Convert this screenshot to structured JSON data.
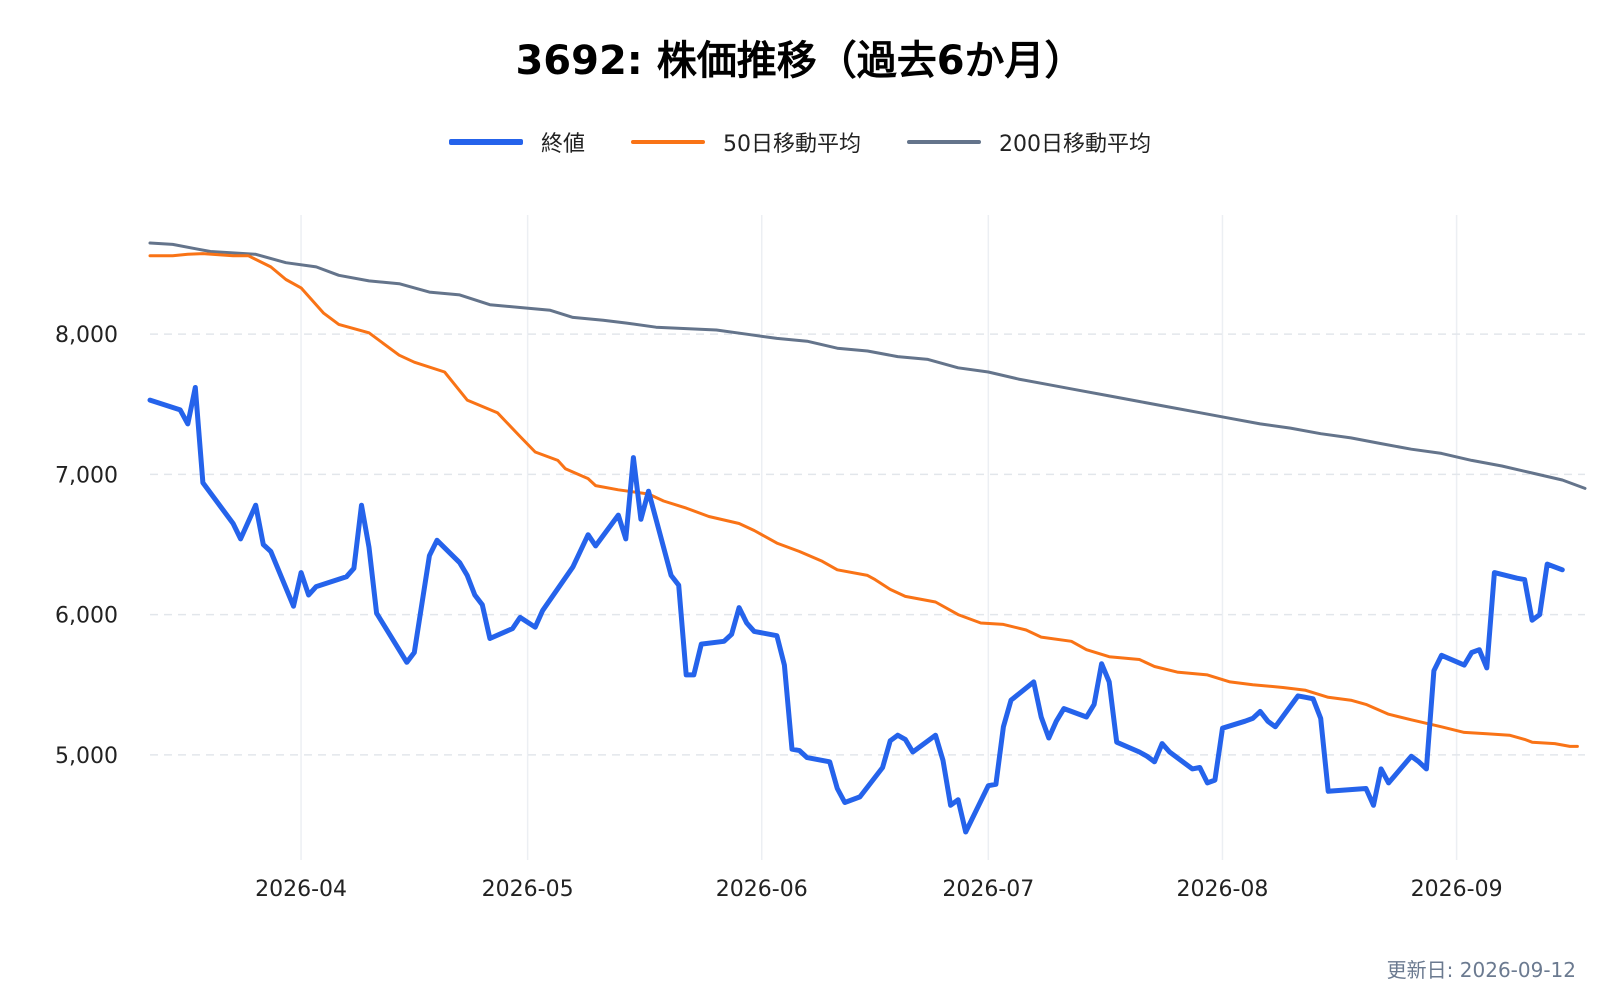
{
  "chart_data": {
    "type": "line",
    "title": "3692: 株価推移（過去6か月）",
    "xlabel": "",
    "ylabel": "",
    "x_ticks": [
      "2026-04",
      "2026-05",
      "2026-06",
      "2026-07",
      "2026-08",
      "2026-09"
    ],
    "y_ticks": [
      "5,000",
      "6,000",
      "7,000",
      "8,000"
    ],
    "y_tick_values": [
      5000,
      6000,
      7000,
      8000
    ],
    "xlim": [
      "2026-03-12",
      "2026-09-18"
    ],
    "ylim": [
      4250,
      8850
    ],
    "grid": {
      "horizontal": "dashed",
      "vertical": "solid"
    },
    "legend_position": "top-center",
    "series": [
      {
        "name": "終値",
        "color": "#2563eb",
        "points": [
          [
            "2026-03-12",
            7530
          ],
          [
            "2026-03-16",
            7460
          ],
          [
            "2026-03-17",
            7360
          ],
          [
            "2026-03-18",
            7620
          ],
          [
            "2026-03-19",
            6940
          ],
          [
            "2026-03-23",
            6650
          ],
          [
            "2026-03-24",
            6540
          ],
          [
            "2026-03-26",
            6780
          ],
          [
            "2026-03-27",
            6500
          ],
          [
            "2026-03-28",
            6450
          ],
          [
            "2026-03-31",
            6060
          ],
          [
            "2026-04-01",
            6300
          ],
          [
            "2026-04-02",
            6140
          ],
          [
            "2026-04-03",
            6200
          ],
          [
            "2026-04-07",
            6270
          ],
          [
            "2026-04-08",
            6330
          ],
          [
            "2026-04-09",
            6780
          ],
          [
            "2026-04-10",
            6480
          ],
          [
            "2026-04-11",
            6010
          ],
          [
            "2026-04-15",
            5660
          ],
          [
            "2026-04-16",
            5730
          ],
          [
            "2026-04-18",
            6420
          ],
          [
            "2026-04-19",
            6530
          ],
          [
            "2026-04-22",
            6370
          ],
          [
            "2026-04-23",
            6280
          ],
          [
            "2026-04-24",
            6140
          ],
          [
            "2026-04-25",
            6070
          ],
          [
            "2026-04-26",
            5830
          ],
          [
            "2026-04-29",
            5900
          ],
          [
            "2026-04-30",
            5980
          ],
          [
            "2026-05-02",
            5910
          ],
          [
            "2026-05-03",
            6030
          ],
          [
            "2026-05-07",
            6340
          ],
          [
            "2026-05-09",
            6570
          ],
          [
            "2026-05-10",
            6490
          ],
          [
            "2026-05-13",
            6710
          ],
          [
            "2026-05-14",
            6540
          ],
          [
            "2026-05-15",
            7120
          ],
          [
            "2026-05-16",
            6680
          ],
          [
            "2026-05-17",
            6880
          ],
          [
            "2026-05-20",
            6280
          ],
          [
            "2026-05-21",
            6210
          ],
          [
            "2026-05-22",
            5570
          ],
          [
            "2026-05-23",
            5570
          ],
          [
            "2026-05-24",
            5790
          ],
          [
            "2026-05-27",
            5810
          ],
          [
            "2026-05-28",
            5860
          ],
          [
            "2026-05-29",
            6050
          ],
          [
            "2026-05-30",
            5940
          ],
          [
            "2026-05-31",
            5880
          ],
          [
            "2026-06-03",
            5850
          ],
          [
            "2026-06-04",
            5640
          ],
          [
            "2026-06-05",
            5040
          ],
          [
            "2026-06-06",
            5030
          ],
          [
            "2026-06-07",
            4980
          ],
          [
            "2026-06-10",
            4950
          ],
          [
            "2026-06-11",
            4760
          ],
          [
            "2026-06-12",
            4660
          ],
          [
            "2026-06-14",
            4700
          ],
          [
            "2026-06-17",
            4910
          ],
          [
            "2026-06-18",
            5100
          ],
          [
            "2026-06-19",
            5140
          ],
          [
            "2026-06-20",
            5110
          ],
          [
            "2026-06-21",
            5020
          ],
          [
            "2026-06-24",
            5140
          ],
          [
            "2026-06-25",
            4960
          ],
          [
            "2026-06-26",
            4640
          ],
          [
            "2026-06-27",
            4680
          ],
          [
            "2026-06-28",
            4450
          ],
          [
            "2026-07-01",
            4780
          ],
          [
            "2026-07-02",
            4790
          ],
          [
            "2026-07-03",
            5200
          ],
          [
            "2026-07-04",
            5390
          ],
          [
            "2026-07-07",
            5520
          ],
          [
            "2026-07-08",
            5270
          ],
          [
            "2026-07-09",
            5120
          ],
          [
            "2026-07-10",
            5240
          ],
          [
            "2026-07-11",
            5330
          ],
          [
            "2026-07-14",
            5270
          ],
          [
            "2026-07-15",
            5360
          ],
          [
            "2026-07-16",
            5650
          ],
          [
            "2026-07-17",
            5520
          ],
          [
            "2026-07-18",
            5090
          ],
          [
            "2026-07-21",
            5020
          ],
          [
            "2026-07-22",
            4990
          ],
          [
            "2026-07-23",
            4950
          ],
          [
            "2026-07-24",
            5080
          ],
          [
            "2026-07-25",
            5020
          ],
          [
            "2026-07-28",
            4900
          ],
          [
            "2026-07-29",
            4910
          ],
          [
            "2026-07-30",
            4800
          ],
          [
            "2026-07-31",
            4820
          ],
          [
            "2026-08-01",
            5190
          ],
          [
            "2026-08-04",
            5240
          ],
          [
            "2026-08-05",
            5260
          ],
          [
            "2026-08-06",
            5310
          ],
          [
            "2026-08-07",
            5240
          ],
          [
            "2026-08-08",
            5200
          ],
          [
            "2026-08-11",
            5420
          ],
          [
            "2026-08-12",
            5410
          ],
          [
            "2026-08-13",
            5400
          ],
          [
            "2026-08-14",
            5260
          ],
          [
            "2026-08-15",
            4740
          ],
          [
            "2026-08-20",
            4760
          ],
          [
            "2026-08-21",
            4640
          ],
          [
            "2026-08-22",
            4900
          ],
          [
            "2026-08-23",
            4800
          ],
          [
            "2026-08-26",
            4990
          ],
          [
            "2026-08-27",
            4950
          ],
          [
            "2026-08-28",
            4900
          ],
          [
            "2026-08-29",
            5600
          ],
          [
            "2026-08-30",
            5710
          ],
          [
            "2026-09-02",
            5640
          ],
          [
            "2026-09-03",
            5730
          ],
          [
            "2026-09-04",
            5750
          ],
          [
            "2026-09-05",
            5620
          ],
          [
            "2026-09-06",
            6300
          ],
          [
            "2026-09-09",
            6260
          ],
          [
            "2026-09-10",
            6250
          ],
          [
            "2026-09-11",
            5960
          ],
          [
            "2026-09-12",
            6000
          ],
          [
            "2026-09-13",
            6360
          ],
          [
            "2026-09-15",
            6320
          ]
        ]
      },
      {
        "name": "50日移動平均",
        "color": "#f97316",
        "points": [
          [
            "2026-03-12",
            8560
          ],
          [
            "2026-03-15",
            8560
          ],
          [
            "2026-03-17",
            8570
          ],
          [
            "2026-03-19",
            8575
          ],
          [
            "2026-03-23",
            8560
          ],
          [
            "2026-03-25",
            8560
          ],
          [
            "2026-03-28",
            8480
          ],
          [
            "2026-03-30",
            8390
          ],
          [
            "2026-04-01",
            8330
          ],
          [
            "2026-04-04",
            8150
          ],
          [
            "2026-04-06",
            8070
          ],
          [
            "2026-04-10",
            8010
          ],
          [
            "2026-04-14",
            7850
          ],
          [
            "2026-04-16",
            7800
          ],
          [
            "2026-04-20",
            7730
          ],
          [
            "2026-04-23",
            7530
          ],
          [
            "2026-04-27",
            7440
          ],
          [
            "2026-04-30",
            7270
          ],
          [
            "2026-05-02",
            7160
          ],
          [
            "2026-05-05",
            7100
          ],
          [
            "2026-05-06",
            7040
          ],
          [
            "2026-05-09",
            6970
          ],
          [
            "2026-05-10",
            6920
          ],
          [
            "2026-05-13",
            6890
          ],
          [
            "2026-05-17",
            6860
          ],
          [
            "2026-05-19",
            6810
          ],
          [
            "2026-05-22",
            6760
          ],
          [
            "2026-05-25",
            6700
          ],
          [
            "2026-05-29",
            6650
          ],
          [
            "2026-05-31",
            6600
          ],
          [
            "2026-06-03",
            6510
          ],
          [
            "2026-06-06",
            6450
          ],
          [
            "2026-06-09",
            6380
          ],
          [
            "2026-06-11",
            6320
          ],
          [
            "2026-06-15",
            6280
          ],
          [
            "2026-06-16",
            6250
          ],
          [
            "2026-06-18",
            6180
          ],
          [
            "2026-06-20",
            6130
          ],
          [
            "2026-06-24",
            6090
          ],
          [
            "2026-06-27",
            6000
          ],
          [
            "2026-06-30",
            5940
          ],
          [
            "2026-07-03",
            5930
          ],
          [
            "2026-07-06",
            5890
          ],
          [
            "2026-07-08",
            5840
          ],
          [
            "2026-07-12",
            5810
          ],
          [
            "2026-07-14",
            5750
          ],
          [
            "2026-07-17",
            5700
          ],
          [
            "2026-07-21",
            5680
          ],
          [
            "2026-07-23",
            5630
          ],
          [
            "2026-07-26",
            5590
          ],
          [
            "2026-07-30",
            5570
          ],
          [
            "2026-08-02",
            5520
          ],
          [
            "2026-08-05",
            5500
          ],
          [
            "2026-08-09",
            5480
          ],
          [
            "2026-08-12",
            5460
          ],
          [
            "2026-08-15",
            5410
          ],
          [
            "2026-08-18",
            5390
          ],
          [
            "2026-08-20",
            5360
          ],
          [
            "2026-08-23",
            5290
          ],
          [
            "2026-08-26",
            5250
          ],
          [
            "2026-08-30",
            5200
          ],
          [
            "2026-09-02",
            5160
          ],
          [
            "2026-09-05",
            5150
          ],
          [
            "2026-09-08",
            5140
          ],
          [
            "2026-09-10",
            5110
          ],
          [
            "2026-09-11",
            5090
          ],
          [
            "2026-09-14",
            5080
          ],
          [
            "2026-09-15",
            5070
          ],
          [
            "2026-09-16",
            5060
          ],
          [
            "2026-09-17",
            5060
          ]
        ]
      },
      {
        "name": "200日移動平均",
        "color": "#64748b",
        "points": [
          [
            "2026-03-12",
            8650
          ],
          [
            "2026-03-15",
            8640
          ],
          [
            "2026-03-18",
            8610
          ],
          [
            "2026-03-20",
            8590
          ],
          [
            "2026-03-26",
            8570
          ],
          [
            "2026-03-30",
            8510
          ],
          [
            "2026-04-03",
            8480
          ],
          [
            "2026-04-06",
            8420
          ],
          [
            "2026-04-10",
            8380
          ],
          [
            "2026-04-14",
            8360
          ],
          [
            "2026-04-18",
            8300
          ],
          [
            "2026-04-22",
            8280
          ],
          [
            "2026-04-26",
            8210
          ],
          [
            "2026-04-30",
            8190
          ],
          [
            "2026-05-04",
            8170
          ],
          [
            "2026-05-07",
            8120
          ],
          [
            "2026-05-11",
            8100
          ],
          [
            "2026-05-14",
            8080
          ],
          [
            "2026-05-18",
            8050
          ],
          [
            "2026-05-22",
            8040
          ],
          [
            "2026-05-26",
            8030
          ],
          [
            "2026-05-30",
            8000
          ],
          [
            "2026-06-03",
            7970
          ],
          [
            "2026-06-07",
            7950
          ],
          [
            "2026-06-11",
            7900
          ],
          [
            "2026-06-15",
            7880
          ],
          [
            "2026-06-19",
            7840
          ],
          [
            "2026-06-23",
            7820
          ],
          [
            "2026-06-27",
            7760
          ],
          [
            "2026-07-01",
            7730
          ],
          [
            "2026-07-05",
            7680
          ],
          [
            "2026-07-09",
            7640
          ],
          [
            "2026-07-13",
            7600
          ],
          [
            "2026-07-17",
            7560
          ],
          [
            "2026-07-21",
            7520
          ],
          [
            "2026-07-25",
            7480
          ],
          [
            "2026-07-29",
            7440
          ],
          [
            "2026-08-02",
            7400
          ],
          [
            "2026-08-06",
            7360
          ],
          [
            "2026-08-10",
            7330
          ],
          [
            "2026-08-14",
            7290
          ],
          [
            "2026-08-18",
            7260
          ],
          [
            "2026-08-22",
            7220
          ],
          [
            "2026-08-26",
            7180
          ],
          [
            "2026-08-30",
            7150
          ],
          [
            "2026-09-03",
            7100
          ],
          [
            "2026-09-07",
            7060
          ],
          [
            "2026-09-11",
            7010
          ],
          [
            "2026-09-15",
            6960
          ],
          [
            "2026-09-18",
            6900
          ]
        ]
      }
    ]
  },
  "footer": {
    "updated": "更新日: 2026-09-12"
  }
}
